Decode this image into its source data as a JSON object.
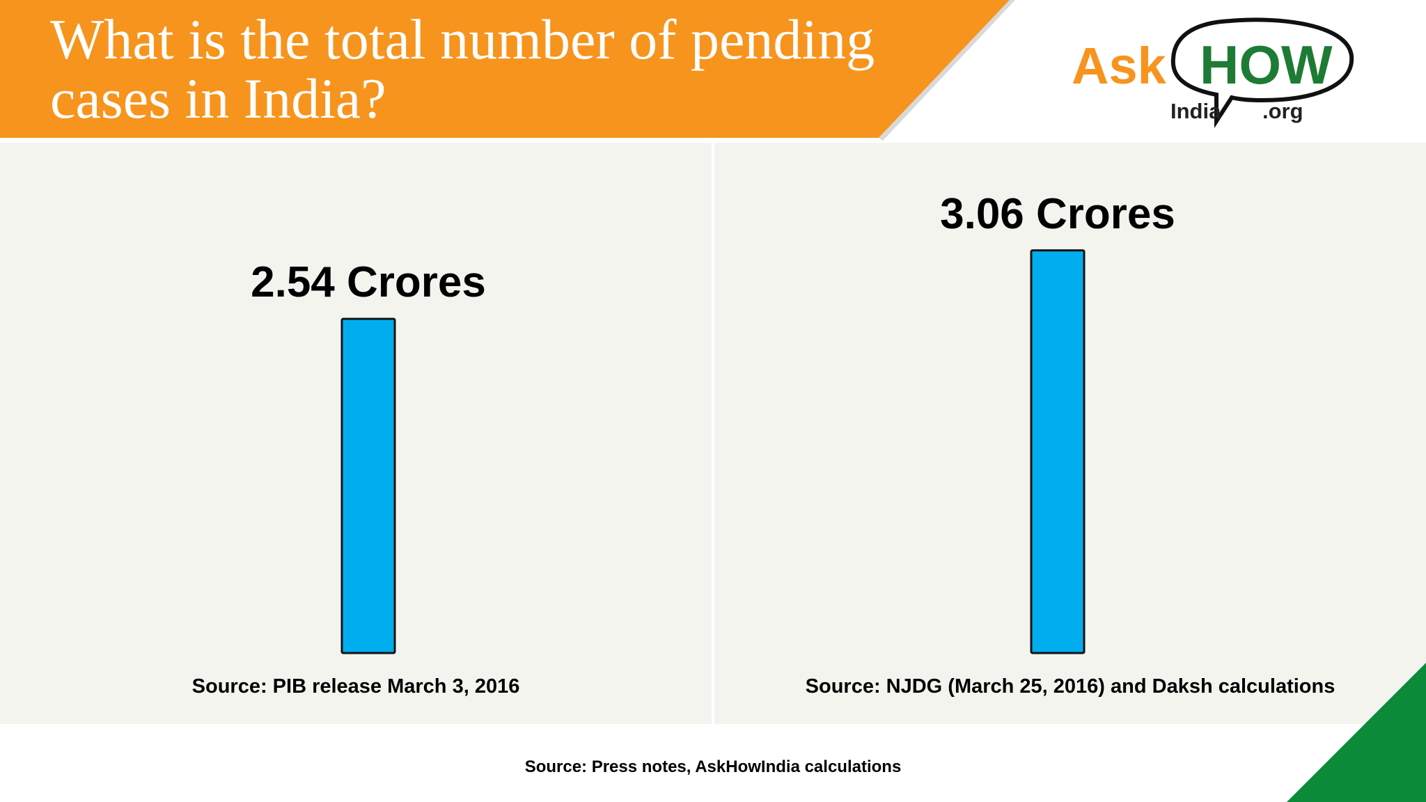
{
  "title": "What is the total number of pending cases in India?",
  "logo": {
    "ask": "Ask",
    "how": "HOW",
    "india": "India",
    "org": ".org"
  },
  "colors": {
    "banner": "#f7941d",
    "bar": "#00aeef",
    "accent_green": "#0b8a3a",
    "logo_orange": "#f7941d",
    "logo_green": "#1e7b34"
  },
  "chart_data": [
    {
      "type": "bar",
      "categories": [
        ""
      ],
      "values": [
        2.54
      ],
      "data_labels": [
        "2.54 Crores"
      ],
      "source": "Source: PIB release March 3, 2016"
    },
    {
      "type": "bar",
      "categories": [
        ""
      ],
      "values": [
        3.06
      ],
      "data_labels": [
        "3.06 Crores"
      ],
      "source": "Source: NJDG (March 25, 2016) and Daksh calculations"
    }
  ],
  "footer_source": "Source: Press notes, AskHowIndia calculations"
}
